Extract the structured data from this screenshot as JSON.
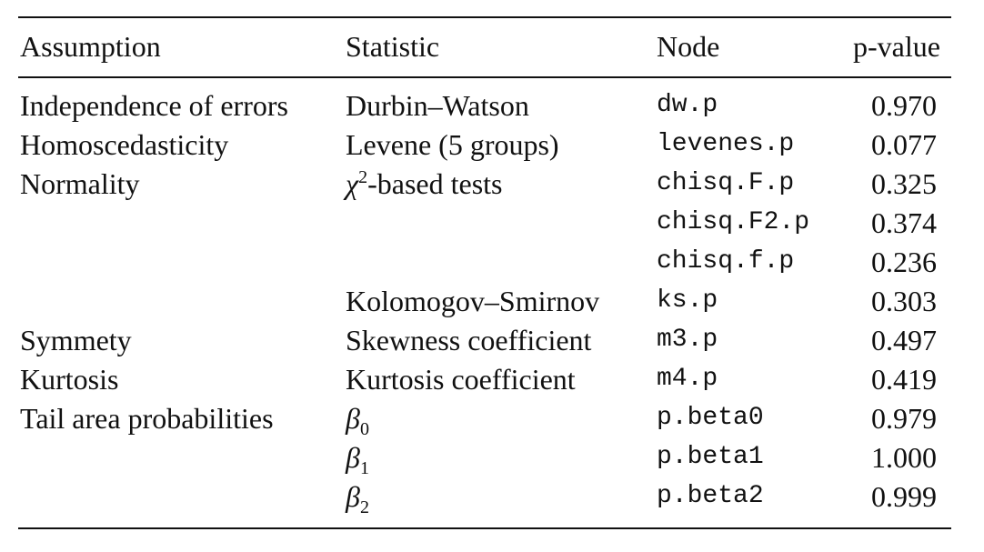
{
  "table": {
    "headers": {
      "assumption": "Assumption",
      "statistic": "Statistic",
      "node": "Node",
      "pvalue": "p-value"
    },
    "rows": [
      {
        "assumption": "Independence of errors",
        "statistic": "Durbin–Watson",
        "node": "dw.p",
        "pvalue": "0.970"
      },
      {
        "assumption": "Homoscedasticity",
        "statistic": "Levene (5 groups)",
        "node": "levenes.p",
        "pvalue": "0.077"
      },
      {
        "assumption": "Normality",
        "statistic_sym": "χ",
        "statistic_sup": "2",
        "statistic_rest": "-based tests",
        "node": "chisq.F.p",
        "pvalue": "0.325"
      },
      {
        "assumption": "",
        "statistic": "",
        "node": "chisq.F2.p",
        "pvalue": "0.374"
      },
      {
        "assumption": "",
        "statistic": "",
        "node": "chisq.f.p",
        "pvalue": "0.236"
      },
      {
        "assumption": "",
        "statistic": "Kolomogov–Smirnov",
        "node": "ks.p",
        "pvalue": "0.303"
      },
      {
        "assumption": "Symmety",
        "statistic": "Skewness coefficient",
        "node": "m3.p",
        "pvalue": "0.497"
      },
      {
        "assumption": "Kurtosis",
        "statistic": "Kurtosis coefficient",
        "node": "m4.p",
        "pvalue": "0.419"
      },
      {
        "assumption": "Tail area probabilities",
        "statistic_sym": "β",
        "statistic_sub": "0",
        "node": "p.beta0",
        "pvalue": "0.979"
      },
      {
        "assumption": "",
        "statistic_sym": "β",
        "statistic_sub": "1",
        "node": "p.beta1",
        "pvalue": "1.000"
      },
      {
        "assumption": "",
        "statistic_sym": "β",
        "statistic_sub": "2",
        "node": "p.beta2",
        "pvalue": "0.999"
      }
    ]
  }
}
